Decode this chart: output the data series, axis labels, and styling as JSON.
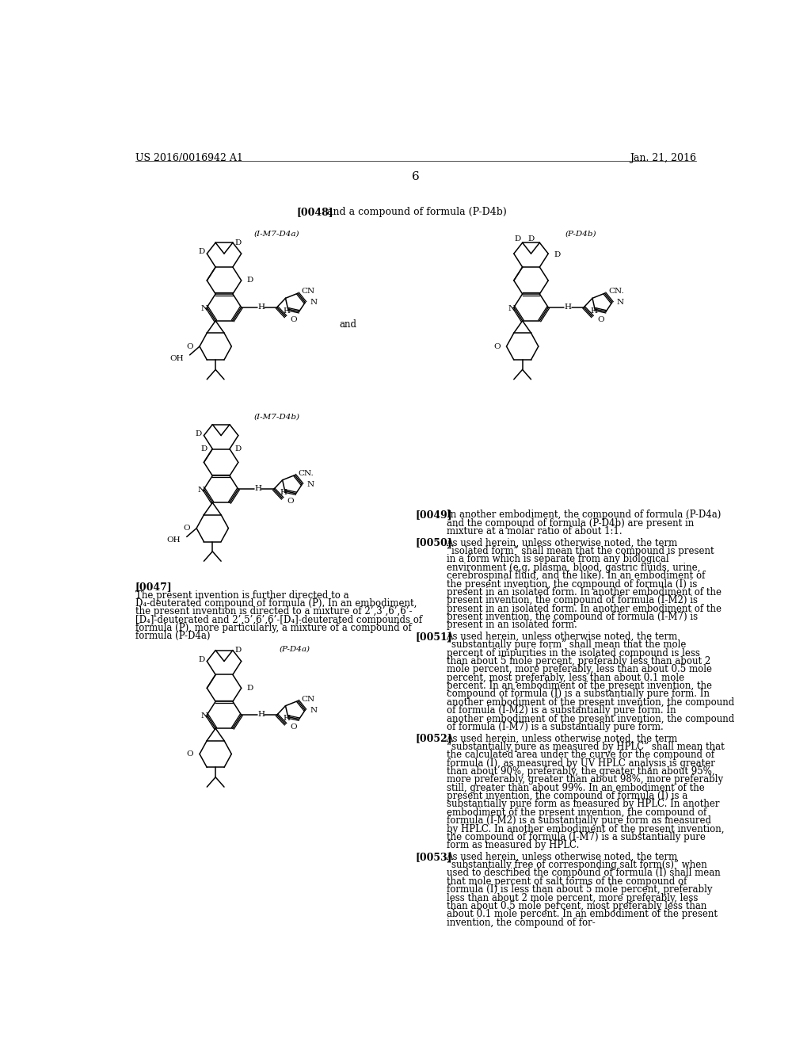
{
  "background_color": "#ffffff",
  "header_left": "US 2016/0016942 A1",
  "header_right": "Jan. 21, 2016",
  "page_number": "6",
  "paragraph_0048_text": "and a compound of formula (P-D4b)",
  "label_IM7D4a": "(I-M7-D4a)",
  "label_PD4b": "(P-D4b)",
  "label_IM7D4b": "(I-M7-D4b)",
  "label_PD4a": "(P-D4a)",
  "paragraph_0047_lines": [
    "The present invention is further directed to a",
    "D₄-deuterated compound of formula (P). In an embodiment,",
    "the present invention is directed to a mixture of 2’,3’,6’,6’-",
    "[D₄]-deuterated and 2’,5’,6’,6’-[D₄]-deuterated compounds of",
    "formula (P), more particularly, a mixture of a compound of",
    "formula (P-D4a)"
  ],
  "paragraph_0049_text": "In another embodiment, the compound of formula (P-D4a) and the compound of formula (P-D4b) are present in mixture at a molar ratio of about 1:1.",
  "paragraph_0050_text": "As used herein, unless otherwise noted, the term “isolated form” shall mean that the compound is present in a form which is separate from any biological environment (e.g. plasma, blood, gastric fluids, urine, cerebrospinal fluid, and the like). In an embodiment of the present invention, the compound of formula (I) is present in an isolated form. In another embodiment of the present invention, the compound of formula (I-M2) is present in an isolated form. In another embodiment of the present invention, the compound of formula (I-M7) is present in an isolated form.",
  "paragraph_0051_text": "As used herein, unless otherwise noted, the term “substantially pure form” shall mean that the mole percent of impurities in the isolated compound is less than about 5 mole percent, preferably less than about 2 mole percent, more preferably, less than about 0.5 mole percent, most preferably, less than about 0.1 mole percent. In an embodiment of the present invention, the compound of formula (I) is a substantially pure form. In another embodiment of the present invention, the compound of formula (I-M2) is a substantially pure form. In another embodiment of the present invention, the compound of formula (I-M7) is a substantially pure form.",
  "paragraph_0052_text": "As used herein, unless otherwise noted, the term “substantially pure as measured by HPLC” shall mean that the calculated area under the curve for the compound of formula (I), as measured by UV HPLC analysis is greater than about 90%, preferably, the greater than about 95%, more preferably, greater than about 98%, more preferably still, greater than about 99%. In an embodiment of the present invention, the compound of formula (I) is a substantially pure form as measured by HPLC. In another embodiment of the present invention, the compound of formula (I-M2) is a substantially pure form as measured by HPLC. In another embodiment of the present invention, the compound of formula (I-M7) is a substantially pure form as measured by HPLC.",
  "paragraph_0053_text": "As used herein, unless otherwise noted, the term “substantially free of corresponding salt form(s)” when used to described the compound of formula (I) shall mean that mole percent of salt forms of the compound of formula (I) is less than about 5 mole percent, preferably less than about 2 mole percent, more preferably, less than about 0.5 mole percent, most preferably less than about 0.1 mole percent. In an embodiment of the present invention, the compound of for-"
}
